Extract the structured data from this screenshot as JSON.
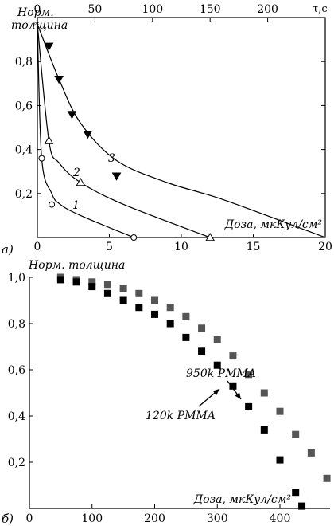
{
  "chart_data": [
    {
      "type": "line",
      "panel_label": "а)",
      "ylabel": "Норм. толщина",
      "xlabel": "Доза, мкКул/см²",
      "x2label": "τ,с",
      "xlim": [
        0,
        20
      ],
      "ylim": [
        0,
        1.0
      ],
      "x2lim": [
        0,
        250
      ],
      "xticks": [
        0,
        5,
        10,
        15,
        20
      ],
      "yticks": [
        0.2,
        0.4,
        0.6,
        0.8
      ],
      "x2ticks": [
        0,
        50,
        100,
        150,
        200
      ],
      "series": [
        {
          "name": "1",
          "marker": "open-circle",
          "x": [
            0,
            0.3,
            1.0,
            1.6,
            3.0,
            6.7
          ],
          "y": [
            0.97,
            0.36,
            0.2,
            0.15,
            0.1,
            0.0
          ],
          "marker_points": [
            {
              "x": 0.3,
              "y": 0.36
            },
            {
              "x": 1.0,
              "y": 0.15
            },
            {
              "x": 6.7,
              "y": 0.0
            }
          ]
        },
        {
          "name": "2",
          "marker": "open-triangle",
          "x": [
            0,
            0.8,
            1.5,
            3.0,
            6.0,
            12.0
          ],
          "y": [
            0.97,
            0.44,
            0.34,
            0.25,
            0.15,
            0.0
          ],
          "marker_points": [
            {
              "x": 0.8,
              "y": 0.44
            },
            {
              "x": 3.0,
              "y": 0.25
            },
            {
              "x": 12.0,
              "y": 0.0
            }
          ]
        },
        {
          "name": "3",
          "marker": "filled-inverted-triangle",
          "x": [
            0,
            1.5,
            3.0,
            5.5,
            9.0,
            13.0,
            20.0
          ],
          "y": [
            0.97,
            0.72,
            0.52,
            0.35,
            0.25,
            0.17,
            0.0
          ],
          "marker_points": [
            {
              "x": 0.8,
              "y": 0.87
            },
            {
              "x": 1.5,
              "y": 0.72
            },
            {
              "x": 2.4,
              "y": 0.56
            },
            {
              "x": 3.5,
              "y": 0.47
            },
            {
              "x": 5.5,
              "y": 0.28
            }
          ]
        }
      ]
    },
    {
      "type": "scatter",
      "panel_label": "б)",
      "ylabel": "Норм. толщина",
      "xlabel": "Доза, мкКул/см²",
      "xlim": [
        0,
        480
      ],
      "ylim": [
        0,
        1.0
      ],
      "xticks": [
        0,
        100,
        200,
        300,
        400
      ],
      "yticks": [
        0.2,
        0.4,
        0.6,
        0.8,
        1.0
      ],
      "annotations": [
        {
          "text": "950k PMMA",
          "series": "950k PMMA",
          "point": [
            330,
            0.72
          ]
        },
        {
          "text": "120k PMMA",
          "series": "120k PMMA",
          "point": [
            295,
            0.54
          ]
        }
      ],
      "series": [
        {
          "name": "950k PMMA",
          "color": "#555555",
          "x": [
            50,
            75,
            100,
            125,
            150,
            175,
            200,
            225,
            250,
            275,
            300,
            325,
            350,
            375,
            400,
            425,
            450,
            475
          ],
          "y": [
            1.0,
            0.99,
            0.98,
            0.97,
            0.95,
            0.93,
            0.9,
            0.87,
            0.83,
            0.78,
            0.73,
            0.66,
            0.58,
            0.5,
            0.42,
            0.32,
            0.24,
            0.13
          ]
        },
        {
          "name": "120k PMMA",
          "color": "#000000",
          "x": [
            50,
            75,
            100,
            125,
            150,
            175,
            200,
            225,
            250,
            275,
            300,
            325,
            350,
            375,
            400,
            425,
            435
          ],
          "y": [
            0.99,
            0.98,
            0.96,
            0.93,
            0.9,
            0.87,
            0.84,
            0.8,
            0.74,
            0.68,
            0.62,
            0.53,
            0.44,
            0.34,
            0.21,
            0.07,
            0.01
          ]
        }
      ]
    }
  ]
}
